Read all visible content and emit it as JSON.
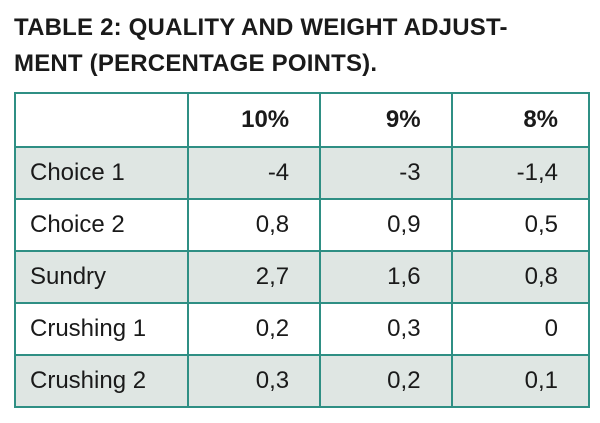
{
  "title_lines": [
    "TABLE 2: QUALITY AND WEIGHT ADJUST-",
    "MENT (PERCENTAGE POINTS)."
  ],
  "table": {
    "header": [
      "10%",
      "9%",
      "8%"
    ],
    "rows": [
      [
        "Choice 1",
        "-4",
        "-3",
        "-1,4"
      ],
      [
        "Choice 2",
        "0,8",
        "0,9",
        "0,5"
      ],
      [
        "Sundry",
        "2,7",
        "1,6",
        "0,8"
      ],
      [
        "Crushing 1",
        "0,2",
        "0,3",
        "0"
      ],
      [
        "Crushing 2",
        "0,3",
        "0,2",
        "0,1"
      ]
    ]
  }
}
